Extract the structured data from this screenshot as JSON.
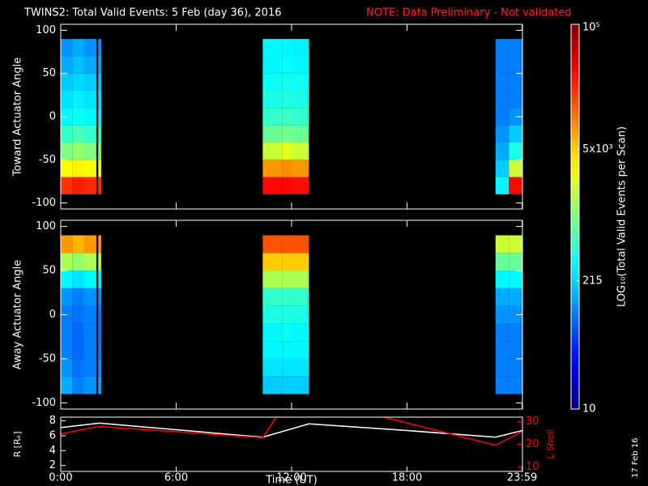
{
  "date_stamp": "17 Feb 16",
  "chart_data": [
    {
      "type": "heatmap",
      "title": "TWINS2: Total Valid Events:  5 Feb (day  36), 2016",
      "note": "NOTE: Data Preliminary - Not validated",
      "ylabel": "Toward Actuator Angle",
      "xlim": [
        0,
        24
      ],
      "ylim": [
        -107,
        107
      ],
      "yticks": [
        -100,
        -50,
        0,
        50,
        100
      ],
      "xbins": [
        0,
        0.6,
        1.2,
        1.85,
        1.95,
        2.1,
        10.5,
        11.5,
        12.0,
        12.9,
        22.6,
        23.3,
        24
      ],
      "ybins": [
        -90,
        -70,
        -50,
        -30,
        -10,
        10,
        30,
        50,
        70,
        90
      ],
      "values": [
        [
          20000,
          25000,
          22000,
          null,
          20000,
          null,
          30000,
          30000,
          28000,
          null,
          300,
          30000
        ],
        [
          3000,
          3500,
          3000,
          null,
          3000,
          null,
          8000,
          9000,
          8000,
          null,
          200,
          2000
        ],
        [
          1000,
          1200,
          1000,
          null,
          1000,
          null,
          2000,
          2500,
          2000,
          null,
          150,
          400
        ],
        [
          500,
          600,
          500,
          null,
          500,
          null,
          800,
          900,
          800,
          null,
          120,
          200
        ],
        [
          300,
          350,
          300,
          null,
          300,
          null,
          500,
          550,
          500,
          null,
          100,
          120
        ],
        [
          250,
          280,
          250,
          null,
          250,
          null,
          400,
          420,
          400,
          null,
          100,
          100
        ],
        [
          200,
          220,
          200,
          null,
          200,
          null,
          350,
          380,
          350,
          null,
          100,
          100
        ],
        [
          150,
          180,
          150,
          null,
          150,
          null,
          300,
          320,
          300,
          null,
          100,
          100
        ],
        [
          120,
          150,
          120,
          null,
          120,
          null,
          300,
          300,
          280,
          null,
          100,
          100
        ]
      ],
      "colorbar": {
        "label": "LOG₁₀(Total Valid Events per Scan)",
        "log": true,
        "lim": [
          10,
          100000
        ],
        "ticks": [
          10,
          215,
          {
            "value": 5000,
            "label": "5x10³"
          },
          {
            "value": 100000,
            "label": "10⁵"
          }
        ]
      }
    },
    {
      "type": "heatmap",
      "ylabel": "Away Actuator Angle",
      "xlim": [
        0,
        24
      ],
      "ylim": [
        -107,
        107
      ],
      "yticks": [
        -100,
        -50,
        0,
        50,
        100
      ],
      "xbins": [
        0,
        0.6,
        1.2,
        1.85,
        1.95,
        2.1,
        10.5,
        11.5,
        12.0,
        12.9,
        22.6,
        23.3,
        24
      ],
      "ybins": [
        -90,
        -70,
        -50,
        -30,
        -10,
        10,
        30,
        50,
        70,
        90
      ],
      "values": [
        [
          150,
          100,
          120,
          null,
          150,
          null,
          200,
          200,
          200,
          null,
          100,
          100
        ],
        [
          120,
          90,
          100,
          null,
          120,
          null,
          250,
          250,
          250,
          null,
          100,
          100
        ],
        [
          100,
          80,
          100,
          null,
          100,
          null,
          300,
          300,
          300,
          null,
          100,
          100
        ],
        [
          100,
          80,
          100,
          null,
          100,
          null,
          300,
          350,
          300,
          null,
          100,
          100
        ],
        [
          100,
          90,
          100,
          null,
          100,
          null,
          400,
          400,
          400,
          null,
          120,
          120
        ],
        [
          120,
          100,
          120,
          null,
          120,
          null,
          500,
          500,
          500,
          null,
          150,
          150
        ],
        [
          300,
          250,
          300,
          null,
          300,
          null,
          1500,
          1500,
          1500,
          null,
          300,
          300
        ],
        [
          1500,
          1200,
          1500,
          null,
          1500,
          null,
          5000,
          5000,
          5000,
          null,
          800,
          800
        ],
        [
          8000,
          6000,
          8000,
          null,
          8000,
          null,
          15000,
          15000,
          15000,
          null,
          2000,
          2000
        ]
      ]
    },
    {
      "type": "line",
      "xlabel": "Time (UT)",
      "xlim": [
        0,
        24
      ],
      "xticks": [
        {
          "value": 0,
          "label": "0:00"
        },
        {
          "value": 6,
          "label": "6:00"
        },
        {
          "value": 12,
          "label": "12:00"
        },
        {
          "value": 18,
          "label": "18:00"
        },
        {
          "value": 23.983,
          "label": "23:59"
        }
      ],
      "ylabel": "R [Rₑ]",
      "ylim": [
        1.2,
        8.5
      ],
      "yticks": [
        2,
        4,
        6,
        8
      ],
      "y2label": "L Shell",
      "y2lim": [
        8,
        32
      ],
      "y2ticks": [
        10,
        20,
        30
      ],
      "series": [
        {
          "name": "R [Rₑ]",
          "color": "#ffffff",
          "x": [
            0,
            2,
            10.5,
            12.9,
            18,
            22.6,
            24
          ],
          "values": [
            7.1,
            7.7,
            5.8,
            7.6,
            6.7,
            5.8,
            6.7
          ]
        },
        {
          "name": "L Shell",
          "color": "#ff0000",
          "axis": "y2",
          "x": [
            0,
            2,
            10.5,
            11.2,
            14,
            16.8,
            22.6,
            24
          ],
          "values": [
            24.6,
            27.9,
            22.9,
            32,
            null,
            32,
            19.6,
            25.7
          ]
        }
      ]
    }
  ]
}
